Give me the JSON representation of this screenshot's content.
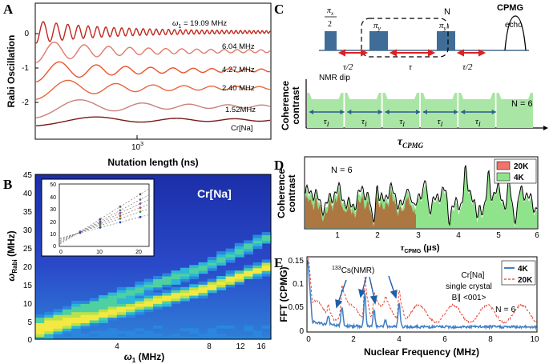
{
  "panels": {
    "A": {
      "letter": "A",
      "ylabel": "Rabi Oscillation",
      "xlabel": "Nutation length (ns)",
      "xtick": "10",
      "xtick_exp": "3",
      "yticks": [
        "0",
        "-1",
        "-2"
      ],
      "omega_label": "ω",
      "omega_sub": "1",
      "omega_value": " = 19.09 MHz",
      "trace_labels": [
        "6.04 MHz",
        "4.27 MHz",
        "2.40 MHz",
        "1.52MHz",
        "Cr[Na]"
      ],
      "trace_colors": [
        "#c0271c",
        "#e07a6a",
        "#e9542c",
        "#e8673c",
        "#c9827a",
        "#7a1a16"
      ]
    },
    "B": {
      "letter": "B",
      "ylabel_main": "ω",
      "ylabel_sub": "Rabi",
      "ylabel_unit": " (MHz)",
      "xlabel_main": "ω",
      "xlabel_sub": "1",
      "xlabel_unit": " (MHz)",
      "yticks": [
        "45",
        "40",
        "35",
        "30",
        "25",
        "20",
        "15",
        "10",
        "5",
        "0"
      ],
      "xticks": [
        "4",
        "8",
        "12",
        "16"
      ],
      "sample_label": "Cr[Na]",
      "inset_yticks": [
        "50",
        "40",
        "30",
        "20",
        "10",
        "0"
      ],
      "inset_xticks": [
        "0",
        "10",
        "20"
      ]
    },
    "C": {
      "letter": "C",
      "title": "CPMG",
      "pi_x_num": "π",
      "pi_x_sub": "x",
      "pi_x_den": "2",
      "pi_y": "π",
      "pi_y_sub": "y",
      "n_label": "N",
      "echo": "echo",
      "tau_half": "τ/2",
      "tau": "τ",
      "nmr_dip": "NMR dip",
      "ylabel_1": "Coherence",
      "ylabel_2": "contrast",
      "n_equals": "N = 6",
      "tau_i": "τ",
      "tau_i_sub": "I",
      "xlabel_main": "τ",
      "xlabel_sub": "CPMG"
    },
    "D": {
      "letter": "D",
      "ylabel_1": "Coherence",
      "ylabel_2": "contrast",
      "n_equals": "N = 6",
      "xlabel_main": "τ",
      "xlabel_sub": "CPMG",
      "xlabel_unit": " (μs)",
      "xticks": [
        "1",
        "2",
        "3",
        "4",
        "5",
        "6"
      ],
      "legend": [
        "20K",
        "4K"
      ],
      "colors": {
        "k20": "#b06a3a",
        "k4": "#8fe38a"
      }
    },
    "E": {
      "letter": "E",
      "ylabel": "FFT (CPMG)",
      "xlabel": "Nuclear Frequency (MHz)",
      "yticks": [
        "0.15",
        "0.1",
        "0.05",
        "0"
      ],
      "xticks": [
        "0",
        "2",
        "4",
        "6",
        "8",
        "10"
      ],
      "cs_sup": "133",
      "cs_label": "Cs(NMR)",
      "note_1": "Cr[Na]",
      "note_2": "single crystal",
      "note_3": "B∥ <001>",
      "n_equals": "N = 6",
      "legend": [
        "4K",
        "20K"
      ],
      "colors": {
        "k4": "#3f7fc4",
        "k20": "#e03a2a"
      }
    }
  },
  "chart_data": [
    {
      "type": "line",
      "panel": "A",
      "title": "",
      "xlabel": "Nutation length (ns)",
      "ylabel": "Rabi Oscillation",
      "xscale": "log",
      "series": [
        {
          "name": "ω1 = 19.09 MHz",
          "offset": 0,
          "freq_mhz": 19.09
        },
        {
          "name": "6.04 MHz",
          "offset": -0.5,
          "freq_mhz": 6.04
        },
        {
          "name": "4.27 MHz",
          "offset": -1.0,
          "freq_mhz": 4.27
        },
        {
          "name": "2.40 MHz",
          "offset": -1.5,
          "freq_mhz": 2.4
        },
        {
          "name": "1.52MHz",
          "offset": -2.0,
          "freq_mhz": 1.52
        },
        {
          "name": "Cr[Na]",
          "offset": -2.3,
          "freq_mhz": 1.0
        }
      ]
    },
    {
      "type": "heatmap",
      "panel": "B",
      "xlabel": "ω1 (MHz)",
      "ylabel": "ωRabi (MHz)",
      "ylim": [
        0,
        45
      ],
      "peak_positions_mhz": [
        3,
        5,
        6,
        7,
        8,
        9,
        10,
        11,
        12,
        13,
        14,
        16,
        18
      ]
    },
    {
      "type": "line",
      "panel": "D",
      "xlabel": "τCPMG (μs)",
      "ylabel": "Coherence contrast",
      "xlim": [
        0.3,
        6
      ],
      "series": [
        {
          "name": "20K"
        },
        {
          "name": "4K"
        }
      ]
    },
    {
      "type": "line",
      "panel": "E",
      "xlabel": "Nuclear Frequency (MHz)",
      "ylabel": "FFT (CPMG)",
      "xlim": [
        0,
        10
      ],
      "ylim": [
        0,
        0.17
      ],
      "peaks_mhz": [
        1.5,
        2.5,
        2.9,
        4.0
      ],
      "series": [
        {
          "name": "4K"
        },
        {
          "name": "20K"
        }
      ]
    }
  ]
}
